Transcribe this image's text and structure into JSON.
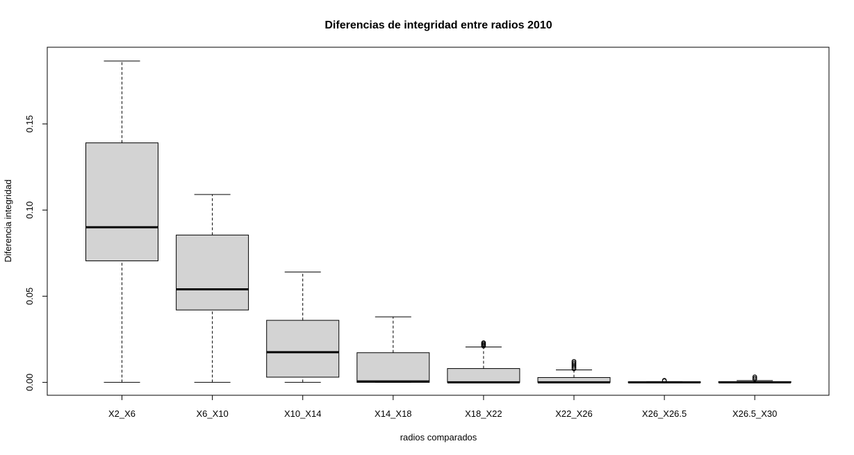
{
  "chart_data": {
    "type": "boxplot",
    "title": "Diferencias de integridad entre radios 2010",
    "xlabel": "radios comparados",
    "ylabel": "Diferencia integridad",
    "ylim": [
      -0.0075,
      0.1945
    ],
    "yticks": [
      "0.00",
      "0.05",
      "0.10",
      "0.15"
    ],
    "ytick_values": [
      0,
      0.05,
      0.1,
      0.15
    ],
    "grid": false,
    "colors": {
      "box_fill": "#d3d3d3",
      "stroke": "#000000"
    },
    "categories": [
      "X2_X6",
      "X6_X10",
      "X10_X14",
      "X14_X18",
      "X18_X22",
      "X22_X26",
      "X26_X26.5",
      "X26.5_X30"
    ],
    "boxes": [
      {
        "whisker_low": 0.0,
        "q1": 0.0705,
        "median": 0.09,
        "q3": 0.139,
        "whisker_high": 0.1865,
        "outliers": []
      },
      {
        "whisker_low": 0.0,
        "q1": 0.042,
        "median": 0.054,
        "q3": 0.0855,
        "whisker_high": 0.109,
        "outliers": []
      },
      {
        "whisker_low": 0.0,
        "q1": 0.003,
        "median": 0.0175,
        "q3": 0.036,
        "whisker_high": 0.064,
        "outliers": []
      },
      {
        "whisker_low": 0.0,
        "q1": 0.0,
        "median": 0.0005,
        "q3": 0.0172,
        "whisker_high": 0.038,
        "outliers": []
      },
      {
        "whisker_low": 0.0,
        "q1": 0.0,
        "median": 0.0,
        "q3": 0.008,
        "whisker_high": 0.0205,
        "outliers": [
          0.021,
          0.0215,
          0.022,
          0.0225,
          0.023
        ]
      },
      {
        "whisker_low": 0.0,
        "q1": 0.0,
        "median": 0.0,
        "q3": 0.0028,
        "whisker_high": 0.0072,
        "outliers": [
          0.0078,
          0.0085,
          0.0092,
          0.01,
          0.0108,
          0.0115,
          0.0122
        ]
      },
      {
        "whisker_low": 0.0,
        "q1": 0.0,
        "median": 0.0,
        "q3": 0.0002,
        "whisker_high": 0.0004,
        "outliers": [
          0.0008,
          0.0012
        ]
      },
      {
        "whisker_low": 0.0,
        "q1": 0.0,
        "median": 0.0,
        "q3": 0.0004,
        "whisker_high": 0.001,
        "outliers": [
          0.0018,
          0.0025,
          0.0032
        ]
      }
    ]
  }
}
